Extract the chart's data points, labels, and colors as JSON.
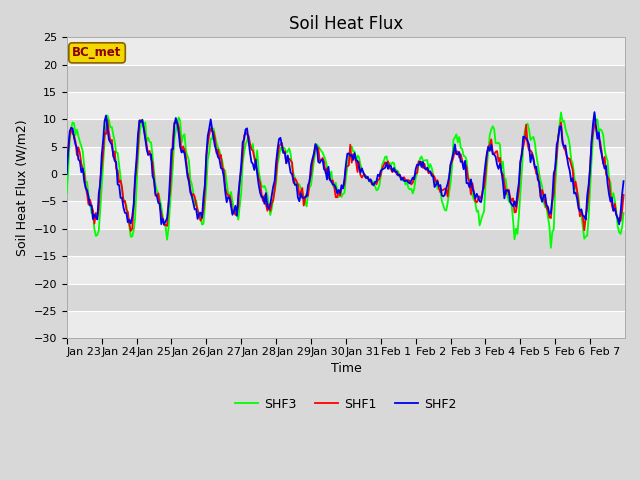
{
  "title": "Soil Heat Flux",
  "xlabel": "Time",
  "ylabel": "Soil Heat Flux (W/m2)",
  "ylim": [
    -30,
    25
  ],
  "yticks": [
    -30,
    -25,
    -20,
    -15,
    -10,
    -5,
    0,
    5,
    10,
    15,
    20,
    25
  ],
  "xtick_labels": [
    "Jan 23",
    "Jan 24",
    "Jan 25",
    "Jan 26",
    "Jan 27",
    "Jan 28",
    "Jan 29",
    "Jan 30",
    "Jan 31",
    "Feb 1",
    "Feb 2",
    "Feb 3",
    "Feb 4",
    "Feb 5",
    "Feb 6",
    "Feb 7"
  ],
  "colors": {
    "SHF1": "#ff0000",
    "SHF2": "#0000ee",
    "SHF3": "#00ff00"
  },
  "bc_met_label": "BC_met",
  "bg_color": "#d8d8d8",
  "band_color": "#ebebeb",
  "linewidth": 1.3,
  "title_fontsize": 12,
  "axis_label_fontsize": 9,
  "tick_fontsize": 8
}
